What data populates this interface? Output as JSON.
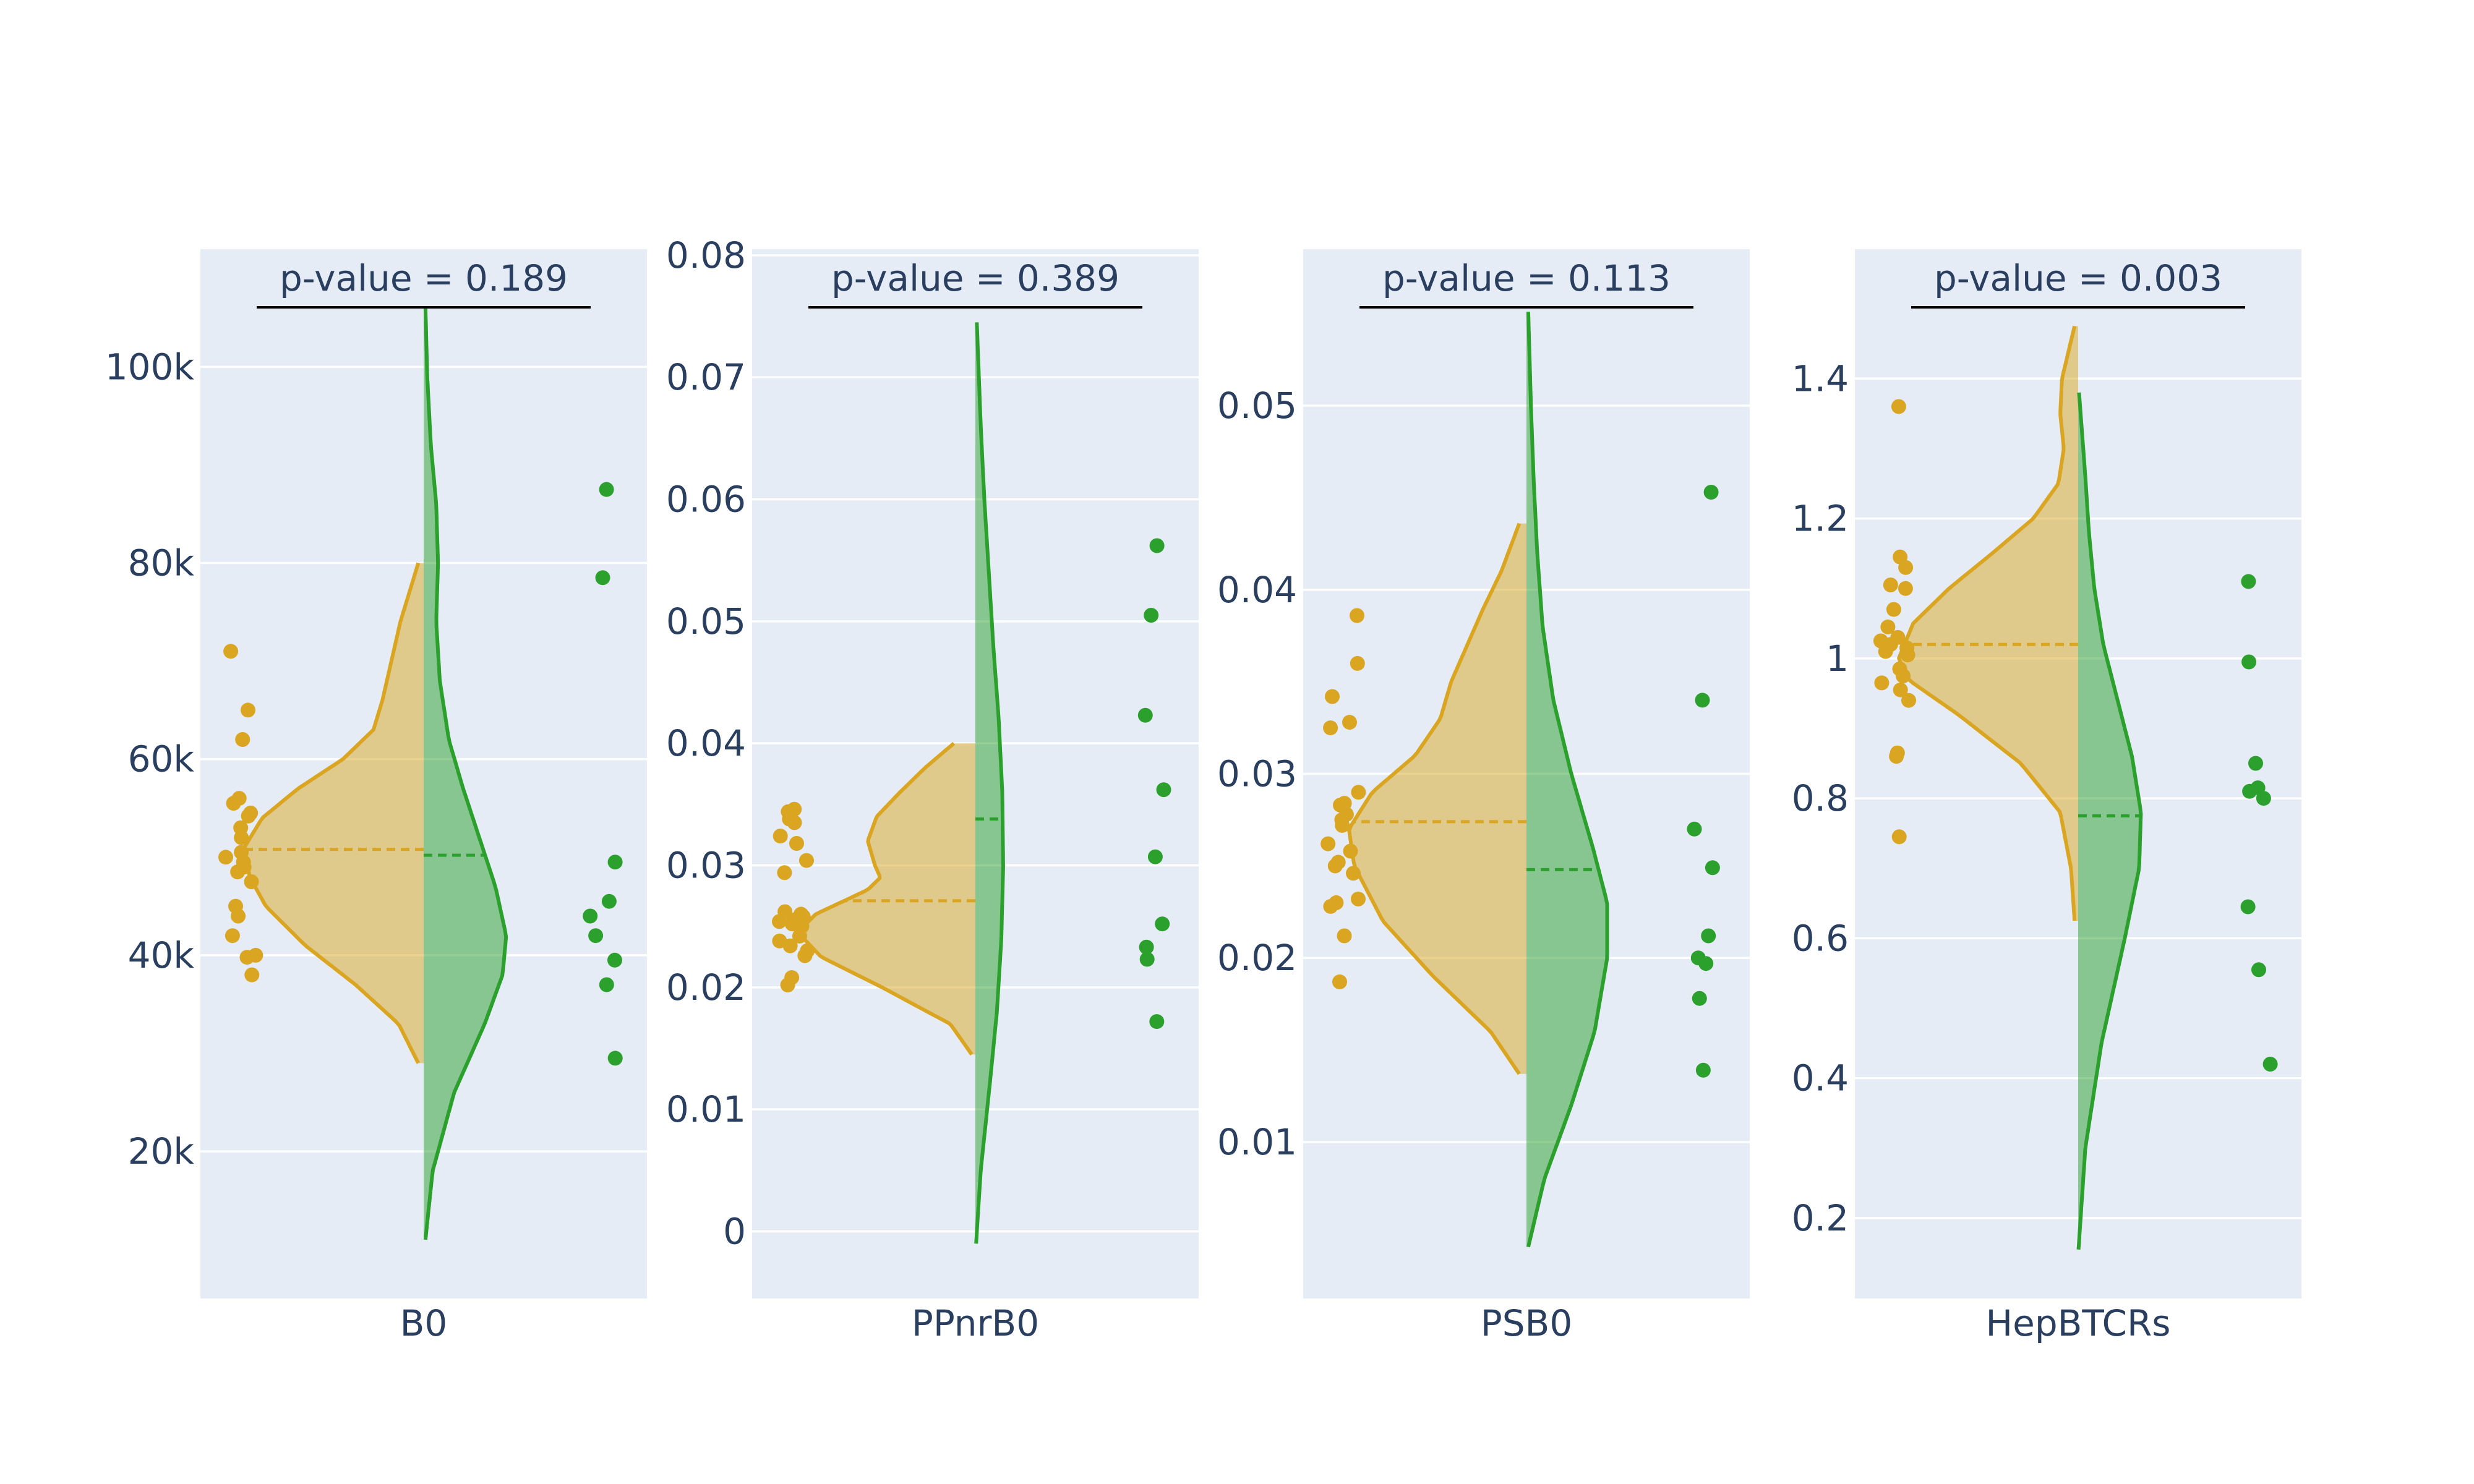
{
  "colors": {
    "group1": "#DAA520",
    "group2": "#2CA02C",
    "panel_bg": "#E5ECF6",
    "grid": "#FFFFFF",
    "text": "#2A3F5F"
  },
  "chart_data": [
    {
      "type": "violin",
      "category": "B0",
      "annotation": "p-value = 0.189",
      "ylim": [
        5000,
        112000
      ],
      "yticks": [
        20000,
        40000,
        60000,
        80000,
        100000
      ],
      "yticklabels": [
        "20k",
        "40k",
        "60k",
        "80k",
        "100k"
      ],
      "grid": true,
      "group1": {
        "color": "#DAA520",
        "mean": 50800,
        "violin_range": [
          29000,
          80000
        ],
        "density": [
          [
            29000,
            0.03
          ],
          [
            33000,
            0.14
          ],
          [
            37000,
            0.38
          ],
          [
            41000,
            0.66
          ],
          [
            45000,
            0.88
          ],
          [
            48000,
            0.97
          ],
          [
            51000,
            1.0
          ],
          [
            54000,
            0.9
          ],
          [
            57000,
            0.7
          ],
          [
            60000,
            0.45
          ],
          [
            63000,
            0.28
          ],
          [
            66000,
            0.23
          ],
          [
            70000,
            0.18
          ],
          [
            74000,
            0.13
          ],
          [
            77000,
            0.08
          ],
          [
            80000,
            0.03
          ]
        ],
        "points": [
          71000,
          65000,
          62000,
          56000,
          55500,
          54500,
          54200,
          53000,
          52000,
          50500,
          50000,
          49500,
          49000,
          48500,
          47500,
          45000,
          44000,
          42000,
          40000,
          39800,
          38000
        ]
      },
      "group2": {
        "color": "#2CA02C",
        "mean": 50200,
        "violin_range": [
          11000,
          106000
        ],
        "density": [
          [
            11000,
            0.01
          ],
          [
            18000,
            0.05
          ],
          [
            26000,
            0.17
          ],
          [
            33000,
            0.34
          ],
          [
            38000,
            0.44
          ],
          [
            42000,
            0.46
          ],
          [
            47000,
            0.4
          ],
          [
            52000,
            0.31
          ],
          [
            57000,
            0.22
          ],
          [
            62000,
            0.14
          ],
          [
            68000,
            0.09
          ],
          [
            74000,
            0.07
          ],
          [
            80000,
            0.08
          ],
          [
            86000,
            0.07
          ],
          [
            92000,
            0.04
          ],
          [
            99000,
            0.02
          ],
          [
            106000,
            0.01
          ]
        ],
        "points": [
          87500,
          78500,
          49500,
          45500,
          44000,
          42000,
          39500,
          37000,
          29500
        ]
      }
    },
    {
      "type": "violin",
      "category": "PPnrB0",
      "annotation": "p-value = 0.389",
      "ylim": [
        -0.0055,
        0.0805
      ],
      "yticks": [
        0,
        0.01,
        0.02,
        0.03,
        0.04,
        0.05,
        0.06,
        0.07,
        0.08
      ],
      "yticklabels": [
        "0",
        "0.01",
        "0.02",
        "0.03",
        "0.04",
        "0.05",
        "0.06",
        "0.07",
        "0.08"
      ],
      "grid": true,
      "group1": {
        "color": "#DAA520",
        "mean": 0.0271,
        "violin_range": [
          0.0145,
          0.04
        ],
        "density": [
          [
            0.0145,
            0.02
          ],
          [
            0.017,
            0.14
          ],
          [
            0.02,
            0.52
          ],
          [
            0.0225,
            0.86
          ],
          [
            0.0245,
            0.99
          ],
          [
            0.026,
            0.89
          ],
          [
            0.028,
            0.6
          ],
          [
            0.029,
            0.53
          ],
          [
            0.03,
            0.56
          ],
          [
            0.032,
            0.6
          ],
          [
            0.034,
            0.55
          ],
          [
            0.036,
            0.42
          ],
          [
            0.038,
            0.28
          ],
          [
            0.04,
            0.12
          ]
        ],
        "points": [
          0.0346,
          0.0344,
          0.0338,
          0.0335,
          0.0324,
          0.0318,
          0.0304,
          0.0294,
          0.0262,
          0.026,
          0.0258,
          0.0256,
          0.0254,
          0.0252,
          0.025,
          0.0242,
          0.0238,
          0.0234,
          0.023,
          0.0226,
          0.0208,
          0.0202
        ]
      },
      "group2": {
        "color": "#2CA02C",
        "mean": 0.0338,
        "violin_range": [
          -0.001,
          0.0745
        ],
        "density": [
          [
            -0.001,
            0.004
          ],
          [
            0.005,
            0.03
          ],
          [
            0.012,
            0.08
          ],
          [
            0.018,
            0.12
          ],
          [
            0.024,
            0.145
          ],
          [
            0.03,
            0.155
          ],
          [
            0.036,
            0.15
          ],
          [
            0.042,
            0.13
          ],
          [
            0.048,
            0.1
          ],
          [
            0.054,
            0.075
          ],
          [
            0.06,
            0.05
          ],
          [
            0.066,
            0.03
          ],
          [
            0.0745,
            0.008
          ]
        ],
        "points": [
          0.0562,
          0.0505,
          0.0423,
          0.0362,
          0.0307,
          0.0252,
          0.0233,
          0.0223,
          0.0172
        ]
      }
    },
    {
      "type": "violin",
      "category": "PSB0",
      "annotation": "p-value = 0.113",
      "ylim": [
        0.0015,
        0.0585
      ],
      "yticks": [
        0.01,
        0.02,
        0.03,
        0.04,
        0.05
      ],
      "yticklabels": [
        "0.01",
        "0.02",
        "0.03",
        "0.04",
        "0.05"
      ],
      "grid": true,
      "group1": {
        "color": "#DAA520",
        "mean": 0.0274,
        "violin_range": [
          0.0137,
          0.0436
        ],
        "density": [
          [
            0.0137,
            0.04
          ],
          [
            0.016,
            0.2
          ],
          [
            0.019,
            0.52
          ],
          [
            0.022,
            0.8
          ],
          [
            0.025,
            0.96
          ],
          [
            0.027,
            0.99
          ],
          [
            0.029,
            0.86
          ],
          [
            0.031,
            0.62
          ],
          [
            0.033,
            0.48
          ],
          [
            0.035,
            0.42
          ],
          [
            0.037,
            0.33
          ],
          [
            0.039,
            0.24
          ],
          [
            0.041,
            0.14
          ],
          [
            0.0436,
            0.04
          ]
        ],
        "points": [
          0.0386,
          0.036,
          0.0342,
          0.0328,
          0.0325,
          0.029,
          0.0284,
          0.0283,
          0.0278,
          0.0275,
          0.0272,
          0.0262,
          0.0258,
          0.0252,
          0.025,
          0.0246,
          0.0232,
          0.023,
          0.0228,
          0.0212,
          0.0187
        ]
      },
      "group2": {
        "color": "#2CA02C",
        "mean": 0.0248,
        "violin_range": [
          0.0043,
          0.0551
        ],
        "density": [
          [
            0.0043,
            0.01
          ],
          [
            0.008,
            0.1
          ],
          [
            0.012,
            0.25
          ],
          [
            0.016,
            0.38
          ],
          [
            0.02,
            0.45
          ],
          [
            0.023,
            0.45
          ],
          [
            0.026,
            0.37
          ],
          [
            0.03,
            0.25
          ],
          [
            0.034,
            0.15
          ],
          [
            0.038,
            0.09
          ],
          [
            0.042,
            0.06
          ],
          [
            0.046,
            0.04
          ],
          [
            0.05,
            0.025
          ],
          [
            0.0551,
            0.01
          ]
        ],
        "points": [
          0.0453,
          0.034,
          0.027,
          0.0249,
          0.0212,
          0.02,
          0.0197,
          0.0178,
          0.0139
        ]
      }
    },
    {
      "type": "violin",
      "category": "HepBTCRs",
      "annotation": "p-value = 0.003",
      "ylim": [
        0.085,
        1.585
      ],
      "yticks": [
        0.2,
        0.4,
        0.6,
        0.8,
        1,
        1.2,
        1.4
      ],
      "yticklabels": [
        "0.2",
        "0.4",
        "0.6",
        "0.8",
        "1",
        "1.2",
        "1.4"
      ],
      "grid": true,
      "group1": {
        "color": "#DAA520",
        "mean": 1.02,
        "violin_range": [
          0.625,
          1.475
        ],
        "density": [
          [
            0.625,
            0.02
          ],
          [
            0.7,
            0.04
          ],
          [
            0.78,
            0.1
          ],
          [
            0.85,
            0.32
          ],
          [
            0.92,
            0.67
          ],
          [
            0.97,
            0.95
          ],
          [
            1.0,
            1.0
          ],
          [
            1.05,
            0.92
          ],
          [
            1.1,
            0.72
          ],
          [
            1.15,
            0.48
          ],
          [
            1.2,
            0.25
          ],
          [
            1.25,
            0.11
          ],
          [
            1.3,
            0.08
          ],
          [
            1.35,
            0.1
          ],
          [
            1.4,
            0.09
          ],
          [
            1.475,
            0.02
          ]
        ],
        "points": [
          1.36,
          1.145,
          1.13,
          1.105,
          1.1,
          1.07,
          1.045,
          1.03,
          1.025,
          1.02,
          1.015,
          1.01,
          1.005,
          0.985,
          0.975,
          0.965,
          0.955,
          0.94,
          0.865,
          0.86,
          0.745
        ]
      },
      "group2": {
        "color": "#2CA02C",
        "mean": 0.775,
        "violin_range": [
          0.155,
          1.38
        ],
        "density": [
          [
            0.155,
            0.002
          ],
          [
            0.3,
            0.04
          ],
          [
            0.45,
            0.13
          ],
          [
            0.6,
            0.26
          ],
          [
            0.7,
            0.34
          ],
          [
            0.78,
            0.35
          ],
          [
            0.86,
            0.3
          ],
          [
            0.94,
            0.22
          ],
          [
            1.02,
            0.14
          ],
          [
            1.1,
            0.09
          ],
          [
            1.18,
            0.06
          ],
          [
            1.26,
            0.04
          ],
          [
            1.38,
            0.005
          ]
        ],
        "points": [
          1.11,
          0.995,
          0.85,
          0.815,
          0.81,
          0.8,
          0.645,
          0.555,
          0.42
        ]
      }
    }
  ]
}
